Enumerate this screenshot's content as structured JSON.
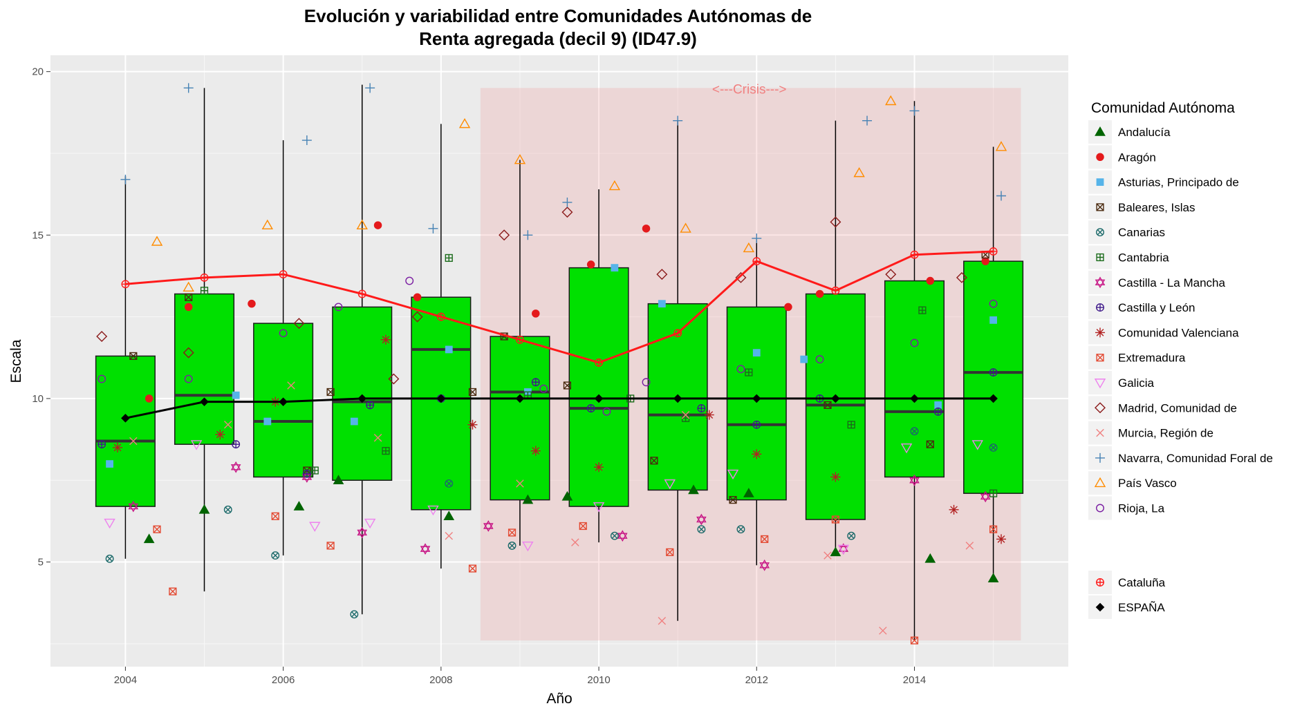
{
  "chart_data": {
    "type": "box",
    "title_line1": "Evolución y variabilidad entre Comunidades Autónomas de",
    "title_line2": "Renta agregada (decil 9) (ID47.9)",
    "xlabel": "Año",
    "ylabel": "Escala",
    "xlim": [
      2003.05,
      2015.95
    ],
    "ylim": [
      1.8,
      20.5
    ],
    "x_ticks": [
      2004,
      2006,
      2008,
      2010,
      2012,
      2014
    ],
    "y_ticks": [
      5,
      10,
      15,
      20
    ],
    "grid": true,
    "crisis_region": {
      "label": "<---Crisis--->",
      "x": [
        2008.5,
        2015.35
      ],
      "y": [
        2.6,
        19.5
      ],
      "color": "#f08080"
    },
    "box_color": "#00e000",
    "boxes": [
      {
        "x": 2004,
        "min": 5.1,
        "q1": 6.7,
        "median": 8.7,
        "q3": 11.3,
        "max": 16.8
      },
      {
        "x": 2005,
        "min": 4.1,
        "q1": 8.6,
        "median": 10.1,
        "q3": 13.2,
        "max": 19.5
      },
      {
        "x": 2006,
        "min": 5.2,
        "q1": 7.6,
        "median": 9.3,
        "q3": 12.3,
        "max": 17.9
      },
      {
        "x": 2007,
        "min": 3.4,
        "q1": 7.5,
        "median": 9.9,
        "q3": 12.8,
        "max": 19.6
      },
      {
        "x": 2008,
        "min": 4.8,
        "q1": 6.6,
        "median": 11.5,
        "q3": 13.1,
        "max": 18.4
      },
      {
        "x": 2009,
        "min": 5.5,
        "q1": 6.9,
        "median": 10.2,
        "q3": 11.9,
        "max": 17.3
      },
      {
        "x": 2010,
        "min": 5.6,
        "q1": 6.7,
        "median": 9.7,
        "q3": 14.0,
        "max": 16.4
      },
      {
        "x": 2011,
        "min": 3.2,
        "q1": 7.2,
        "median": 9.5,
        "q3": 12.9,
        "max": 18.5
      },
      {
        "x": 2012,
        "min": 4.9,
        "q1": 6.9,
        "median": 9.2,
        "q3": 12.8,
        "max": 14.9
      },
      {
        "x": 2013,
        "min": 5.2,
        "q1": 6.3,
        "median": 9.8,
        "q3": 13.2,
        "max": 18.5
      },
      {
        "x": 2014,
        "min": 2.6,
        "q1": 7.6,
        "median": 9.6,
        "q3": 13.6,
        "max": 19.1
      },
      {
        "x": 2015,
        "min": 4.5,
        "q1": 7.1,
        "median": 10.8,
        "q3": 14.2,
        "max": 17.7
      }
    ],
    "series": [
      {
        "name": "Andalucía",
        "shape": "triangle-filled",
        "color": "#006400",
        "points": [
          [
            2004.3,
            5.7
          ],
          [
            2005.0,
            6.6
          ],
          [
            2006.2,
            6.7
          ],
          [
            2006.7,
            7.5
          ],
          [
            2008.1,
            6.4
          ],
          [
            2009.1,
            6.9
          ],
          [
            2009.6,
            7.0
          ],
          [
            2011.2,
            7.2
          ],
          [
            2011.9,
            7.1
          ],
          [
            2013.0,
            5.3
          ],
          [
            2014.2,
            5.1
          ],
          [
            2015.0,
            4.5
          ]
        ]
      },
      {
        "name": "Aragón",
        "shape": "circle-filled",
        "color": "#e41a1c",
        "points": [
          [
            2004.3,
            10.0
          ],
          [
            2004.8,
            12.8
          ],
          [
            2005.6,
            12.9
          ],
          [
            2007.2,
            15.3
          ],
          [
            2007.7,
            13.1
          ],
          [
            2009.2,
            12.6
          ],
          [
            2009.9,
            14.1
          ],
          [
            2010.6,
            15.2
          ],
          [
            2012.4,
            12.8
          ],
          [
            2012.8,
            13.2
          ],
          [
            2014.2,
            13.6
          ],
          [
            2014.9,
            14.2
          ]
        ]
      },
      {
        "name": "Asturias, Principado de",
        "shape": "square-filled",
        "color": "#56b4e9",
        "points": [
          [
            2003.8,
            8.0
          ],
          [
            2005.4,
            10.1
          ],
          [
            2005.8,
            9.3
          ],
          [
            2006.9,
            9.3
          ],
          [
            2008.1,
            11.5
          ],
          [
            2009.1,
            10.2
          ],
          [
            2010.2,
            14.0
          ],
          [
            2010.8,
            12.9
          ],
          [
            2012.0,
            11.4
          ],
          [
            2012.6,
            11.2
          ],
          [
            2014.3,
            9.8
          ],
          [
            2015.0,
            12.4
          ]
        ]
      },
      {
        "name": "Baleares, Islas",
        "shape": "square-x",
        "color": "#4a2a0f",
        "points": [
          [
            2004.1,
            11.3
          ],
          [
            2004.8,
            13.1
          ],
          [
            2006.3,
            7.8
          ],
          [
            2006.6,
            10.2
          ],
          [
            2008.4,
            10.2
          ],
          [
            2008.8,
            11.9
          ],
          [
            2009.6,
            10.4
          ],
          [
            2010.7,
            8.1
          ],
          [
            2011.7,
            6.9
          ],
          [
            2012.9,
            9.8
          ],
          [
            2014.2,
            8.6
          ],
          [
            2014.9,
            14.4
          ]
        ]
      },
      {
        "name": "Canarias",
        "shape": "circle-x",
        "color": "#1c6a6a",
        "points": [
          [
            2003.8,
            5.1
          ],
          [
            2005.3,
            6.6
          ],
          [
            2005.9,
            5.2
          ],
          [
            2006.9,
            3.4
          ],
          [
            2008.1,
            7.4
          ],
          [
            2008.9,
            5.5
          ],
          [
            2010.2,
            5.8
          ],
          [
            2011.3,
            6.0
          ],
          [
            2011.8,
            6.0
          ],
          [
            2013.2,
            5.8
          ],
          [
            2014.0,
            9.0
          ],
          [
            2015.0,
            8.5
          ]
        ]
      },
      {
        "name": "Cantabria",
        "shape": "square-plus",
        "color": "#1a6b1a",
        "points": [
          [
            2005.0,
            13.3
          ],
          [
            2006.4,
            7.8
          ],
          [
            2007.3,
            8.4
          ],
          [
            2008.1,
            14.3
          ],
          [
            2009.1,
            10.1
          ],
          [
            2010.4,
            10.0
          ],
          [
            2011.1,
            9.4
          ],
          [
            2011.9,
            10.8
          ],
          [
            2013.2,
            9.2
          ],
          [
            2014.1,
            12.7
          ],
          [
            2015.0,
            7.1
          ]
        ]
      },
      {
        "name": "Castilla - La Mancha",
        "shape": "star-david",
        "color": "#c71585",
        "points": [
          [
            2004.1,
            6.7
          ],
          [
            2005.4,
            7.9
          ],
          [
            2006.3,
            7.6
          ],
          [
            2007.0,
            5.9
          ],
          [
            2007.8,
            5.4
          ],
          [
            2008.6,
            6.1
          ],
          [
            2010.3,
            5.8
          ],
          [
            2011.3,
            6.3
          ],
          [
            2012.1,
            4.9
          ],
          [
            2013.1,
            5.4
          ],
          [
            2014.0,
            7.5
          ],
          [
            2014.9,
            7.0
          ]
        ]
      },
      {
        "name": "Castilla y León",
        "shape": "circle-plus",
        "color": "#3f1a8a",
        "points": [
          [
            2003.7,
            8.6
          ],
          [
            2005.4,
            8.6
          ],
          [
            2006.3,
            7.7
          ],
          [
            2007.1,
            9.8
          ],
          [
            2008.0,
            10.0
          ],
          [
            2009.2,
            10.5
          ],
          [
            2009.9,
            9.7
          ],
          [
            2011.3,
            9.7
          ],
          [
            2012.0,
            9.2
          ],
          [
            2012.8,
            10.0
          ],
          [
            2014.3,
            9.6
          ],
          [
            2015.0,
            10.8
          ]
        ]
      },
      {
        "name": "Comunidad Valenciana",
        "shape": "asterisk",
        "color": "#b22222",
        "points": [
          [
            2003.9,
            8.5
          ],
          [
            2005.2,
            8.9
          ],
          [
            2005.9,
            9.9
          ],
          [
            2007.3,
            11.8
          ],
          [
            2008.4,
            9.2
          ],
          [
            2009.2,
            8.4
          ],
          [
            2010.0,
            7.9
          ],
          [
            2011.4,
            9.5
          ],
          [
            2012.0,
            8.3
          ],
          [
            2013.0,
            7.6
          ],
          [
            2014.5,
            6.6
          ],
          [
            2015.1,
            5.7
          ]
        ]
      },
      {
        "name": "Extremadura",
        "shape": "square-x",
        "color": "#e34a33",
        "points": [
          [
            2004.4,
            6.0
          ],
          [
            2004.6,
            4.1
          ],
          [
            2005.9,
            6.4
          ],
          [
            2006.6,
            5.5
          ],
          [
            2008.4,
            4.8
          ],
          [
            2008.9,
            5.9
          ],
          [
            2009.8,
            6.1
          ],
          [
            2010.9,
            5.3
          ],
          [
            2012.1,
            5.7
          ],
          [
            2013.0,
            6.3
          ],
          [
            2014.0,
            2.6
          ],
          [
            2015.0,
            6.0
          ]
        ]
      },
      {
        "name": "Galicia",
        "shape": "triangle-down",
        "color": "#ee82ee",
        "points": [
          [
            2003.8,
            6.2
          ],
          [
            2004.9,
            8.6
          ],
          [
            2006.4,
            6.1
          ],
          [
            2007.1,
            6.2
          ],
          [
            2007.9,
            6.6
          ],
          [
            2009.1,
            5.5
          ],
          [
            2010.0,
            6.7
          ],
          [
            2010.9,
            7.4
          ],
          [
            2011.7,
            7.7
          ],
          [
            2013.1,
            5.4
          ],
          [
            2013.9,
            8.5
          ],
          [
            2014.8,
            8.6
          ]
        ]
      },
      {
        "name": "Madrid, Comunidad de",
        "shape": "diamond",
        "color": "#8b1a1a",
        "points": [
          [
            2003.7,
            11.9
          ],
          [
            2004.8,
            11.4
          ],
          [
            2006.2,
            12.3
          ],
          [
            2007.4,
            10.6
          ],
          [
            2007.7,
            12.5
          ],
          [
            2008.8,
            15.0
          ],
          [
            2009.6,
            15.7
          ],
          [
            2010.8,
            13.8
          ],
          [
            2011.8,
            13.7
          ],
          [
            2013.0,
            15.4
          ],
          [
            2013.7,
            13.8
          ],
          [
            2014.6,
            13.7
          ]
        ]
      },
      {
        "name": "Murcia, Región de",
        "shape": "cross",
        "color": "#f08080",
        "points": [
          [
            2004.1,
            8.7
          ],
          [
            2005.3,
            9.2
          ],
          [
            2006.1,
            10.4
          ],
          [
            2007.2,
            8.8
          ],
          [
            2008.1,
            5.8
          ],
          [
            2009.0,
            7.4
          ],
          [
            2009.7,
            5.6
          ],
          [
            2010.8,
            3.2
          ],
          [
            2011.1,
            9.5
          ],
          [
            2012.9,
            5.2
          ],
          [
            2013.6,
            2.9
          ],
          [
            2014.7,
            5.5
          ]
        ]
      },
      {
        "name": "Navarra, Comunidad Foral de",
        "shape": "plus",
        "color": "#4682b4",
        "points": [
          [
            2004.0,
            16.7
          ],
          [
            2004.8,
            19.5
          ],
          [
            2006.3,
            17.9
          ],
          [
            2007.1,
            19.5
          ],
          [
            2007.9,
            15.2
          ],
          [
            2009.1,
            15.0
          ],
          [
            2009.6,
            16.0
          ],
          [
            2011.0,
            18.5
          ],
          [
            2012.0,
            14.9
          ],
          [
            2013.4,
            18.5
          ],
          [
            2014.0,
            18.8
          ],
          [
            2015.1,
            16.2
          ]
        ]
      },
      {
        "name": "País Vasco",
        "shape": "triangle",
        "color": "#ff8c00",
        "points": [
          [
            2004.4,
            14.8
          ],
          [
            2004.8,
            13.4
          ],
          [
            2005.8,
            15.3
          ],
          [
            2007.0,
            15.3
          ],
          [
            2008.3,
            18.4
          ],
          [
            2009.0,
            17.3
          ],
          [
            2010.2,
            16.5
          ],
          [
            2011.1,
            15.2
          ],
          [
            2011.9,
            14.6
          ],
          [
            2013.3,
            16.9
          ],
          [
            2013.7,
            19.1
          ],
          [
            2015.1,
            17.7
          ]
        ]
      },
      {
        "name": "Rioja, La",
        "shape": "circle",
        "color": "#7b1fa2",
        "points": [
          [
            2003.7,
            10.6
          ],
          [
            2004.8,
            10.6
          ],
          [
            2006.0,
            12.0
          ],
          [
            2006.7,
            12.8
          ],
          [
            2007.6,
            13.6
          ],
          [
            2009.3,
            10.3
          ],
          [
            2010.1,
            9.6
          ],
          [
            2010.6,
            10.5
          ],
          [
            2011.8,
            10.9
          ],
          [
            2012.8,
            11.2
          ],
          [
            2014.0,
            11.7
          ],
          [
            2015.0,
            12.9
          ]
        ]
      }
    ],
    "line_series": [
      {
        "name": "Cataluña",
        "shape": "circle-plus",
        "color": "#ff1a1a",
        "x": [
          2004,
          2005,
          2006,
          2007,
          2008,
          2009,
          2010,
          2011,
          2012,
          2013,
          2014,
          2015
        ],
        "y": [
          13.5,
          13.7,
          13.8,
          13.2,
          12.5,
          11.8,
          11.1,
          12.0,
          14.2,
          13.3,
          14.4,
          14.5
        ]
      },
      {
        "name": "ESPAÑA",
        "shape": "diamond-filled",
        "color": "#000000",
        "x": [
          2004,
          2005,
          2006,
          2007,
          2008,
          2009,
          2010,
          2011,
          2012,
          2013,
          2014,
          2015
        ],
        "y": [
          9.4,
          9.9,
          9.9,
          10.0,
          10.0,
          10.0,
          10.0,
          10.0,
          10.0,
          10.0,
          10.0,
          10.0
        ]
      }
    ],
    "legend": {
      "title": "Comunidad Autónoma",
      "placement": "right"
    }
  }
}
